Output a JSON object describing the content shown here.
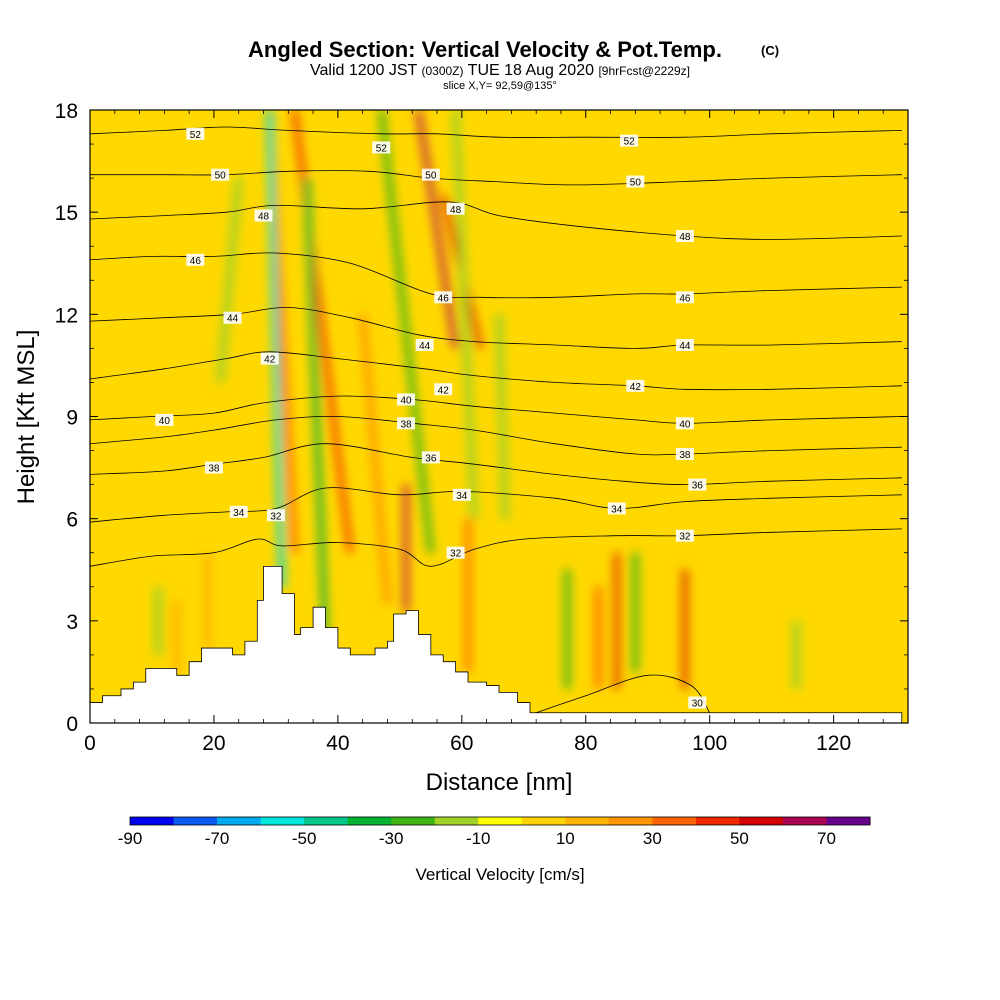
{
  "chart_data": {
    "type": "heatmap",
    "title": "Angled Section: Vertical Velocity & Pot.Temp.",
    "title_mark": "(C)",
    "subtitle": {
      "pre": "Valid 1200 JST",
      "zulu": "(0300Z)",
      "mid": "TUE 18 Aug 2020",
      "fcst": "[9hrFcst@2229z]"
    },
    "slice_text": "slice X,Y= 92,59@135°",
    "xlabel": "Distance [nm]",
    "ylabel": "Height [Kft MSL]",
    "xlim": [
      0,
      132
    ],
    "ylim": [
      0,
      18
    ],
    "x_ticks": [
      0,
      20,
      40,
      60,
      80,
      100,
      120
    ],
    "y_ticks": [
      0,
      3,
      6,
      9,
      12,
      15,
      18
    ],
    "colorbar": {
      "label": "Vertical Velocity [cm/s]",
      "range": [
        -90,
        80
      ],
      "ticks": [
        -90,
        -70,
        -50,
        -30,
        -10,
        10,
        30,
        50,
        70
      ],
      "colors": [
        "#0000f0",
        "#0a5af0",
        "#00aaf0",
        "#00e6dc",
        "#00c88c",
        "#00b432",
        "#3cb414",
        "#a0d228",
        "#ffff00",
        "#ffd200",
        "#ffb400",
        "#ff9600",
        "#ff6400",
        "#f02800",
        "#d20000",
        "#aa0050",
        "#64008c"
      ]
    },
    "terrain_kft": [
      [
        0,
        0.6
      ],
      [
        2,
        0.8
      ],
      [
        5,
        1.0
      ],
      [
        7,
        1.2
      ],
      [
        9,
        1.6
      ],
      [
        12,
        1.6
      ],
      [
        14,
        1.4
      ],
      [
        16,
        1.8
      ],
      [
        18,
        2.2
      ],
      [
        21,
        2.2
      ],
      [
        23,
        2.0
      ],
      [
        25,
        2.4
      ],
      [
        27,
        3.6
      ],
      [
        28,
        4.6
      ],
      [
        30,
        4.6
      ],
      [
        31,
        3.8
      ],
      [
        33,
        2.6
      ],
      [
        34,
        2.8
      ],
      [
        36,
        3.4
      ],
      [
        38,
        2.8
      ],
      [
        40,
        2.2
      ],
      [
        42,
        2.0
      ],
      [
        44,
        2.0
      ],
      [
        46,
        2.2
      ],
      [
        48,
        2.4
      ],
      [
        49,
        3.2
      ],
      [
        51,
        3.3
      ],
      [
        53,
        2.6
      ],
      [
        55,
        2.0
      ],
      [
        57,
        1.8
      ],
      [
        59,
        1.5
      ],
      [
        61,
        1.2
      ],
      [
        64,
        1.1
      ],
      [
        66,
        0.9
      ],
      [
        69,
        0.6
      ],
      [
        71,
        0.3
      ],
      [
        131,
        0.3
      ]
    ],
    "theta_contours": [
      {
        "level": 30,
        "points": [
          [
            72,
            0.3
          ],
          [
            80,
            0.8
          ],
          [
            90,
            1.4
          ],
          [
            97,
            1.1
          ],
          [
            100,
            0.3
          ]
        ]
      },
      {
        "level": 32,
        "points": [
          [
            0,
            4.6
          ],
          [
            10,
            4.9
          ],
          [
            20,
            5.0
          ],
          [
            27,
            5.4
          ],
          [
            31,
            5.2
          ],
          [
            40,
            5.3
          ],
          [
            50,
            5.1
          ],
          [
            55,
            4.6
          ],
          [
            62,
            5.1
          ],
          [
            70,
            5.4
          ],
          [
            85,
            5.5
          ],
          [
            96,
            5.5
          ],
          [
            110,
            5.6
          ],
          [
            131,
            5.7
          ]
        ]
      },
      {
        "level": 34,
        "points": [
          [
            0,
            5.9
          ],
          [
            12,
            6.1
          ],
          [
            22,
            6.2
          ],
          [
            30,
            6.3
          ],
          [
            38,
            6.9
          ],
          [
            50,
            6.7
          ],
          [
            60,
            6.8
          ],
          [
            75,
            6.6
          ],
          [
            85,
            6.3
          ],
          [
            96,
            6.5
          ],
          [
            110,
            6.6
          ],
          [
            131,
            6.7
          ]
        ]
      },
      {
        "level": 36,
        "points": [
          [
            0,
            7.3
          ],
          [
            12,
            7.4
          ],
          [
            20,
            7.6
          ],
          [
            28,
            7.8
          ],
          [
            38,
            8.2
          ],
          [
            52,
            7.8
          ],
          [
            62,
            7.6
          ],
          [
            75,
            7.3
          ],
          [
            86,
            7.1
          ],
          [
            96,
            7.0
          ],
          [
            110,
            7.1
          ],
          [
            131,
            7.2
          ]
        ]
      },
      {
        "level": 38,
        "points": [
          [
            0,
            8.2
          ],
          [
            12,
            8.4
          ],
          [
            20,
            8.6
          ],
          [
            30,
            8.9
          ],
          [
            40,
            9.0
          ],
          [
            52,
            8.8
          ],
          [
            62,
            8.6
          ],
          [
            75,
            8.2
          ],
          [
            88,
            7.9
          ],
          [
            96,
            7.9
          ],
          [
            110,
            8.0
          ],
          [
            131,
            8.1
          ]
        ]
      },
      {
        "level": 40,
        "points": [
          [
            0,
            8.9
          ],
          [
            10,
            9.0
          ],
          [
            20,
            9.1
          ],
          [
            28,
            9.4
          ],
          [
            40,
            9.6
          ],
          [
            52,
            9.5
          ],
          [
            62,
            9.3
          ],
          [
            75,
            9.1
          ],
          [
            88,
            8.9
          ],
          [
            96,
            8.8
          ],
          [
            110,
            8.9
          ],
          [
            131,
            9.0
          ]
        ]
      },
      {
        "level": 42,
        "points": [
          [
            0,
            10.1
          ],
          [
            12,
            10.4
          ],
          [
            22,
            10.7
          ],
          [
            29,
            10.9
          ],
          [
            40,
            10.7
          ],
          [
            54,
            10.4
          ],
          [
            62,
            10.2
          ],
          [
            75,
            10.0
          ],
          [
            88,
            9.9
          ],
          [
            96,
            9.8
          ],
          [
            110,
            9.8
          ],
          [
            131,
            9.9
          ]
        ]
      },
      {
        "level": 44,
        "points": [
          [
            0,
            11.8
          ],
          [
            12,
            11.9
          ],
          [
            23,
            12.0
          ],
          [
            32,
            12.2
          ],
          [
            42,
            11.9
          ],
          [
            53,
            11.4
          ],
          [
            62,
            11.2
          ],
          [
            75,
            11.1
          ],
          [
            88,
            11.0
          ],
          [
            96,
            11.1
          ],
          [
            110,
            11.1
          ],
          [
            131,
            11.2
          ]
        ]
      },
      {
        "level": 46,
        "points": [
          [
            0,
            13.6
          ],
          [
            10,
            13.7
          ],
          [
            20,
            13.7
          ],
          [
            30,
            13.8
          ],
          [
            42,
            13.5
          ],
          [
            55,
            12.6
          ],
          [
            63,
            12.5
          ],
          [
            75,
            12.5
          ],
          [
            88,
            12.6
          ],
          [
            96,
            12.6
          ],
          [
            110,
            12.7
          ],
          [
            131,
            12.8
          ]
        ]
      },
      {
        "level": 48,
        "points": [
          [
            0,
            14.8
          ],
          [
            12,
            14.9
          ],
          [
            22,
            15.0
          ],
          [
            30,
            15.2
          ],
          [
            44,
            15.1
          ],
          [
            58,
            15.3
          ],
          [
            66,
            14.9
          ],
          [
            78,
            14.6
          ],
          [
            96,
            14.3
          ],
          [
            110,
            14.2
          ],
          [
            131,
            14.3
          ]
        ]
      },
      {
        "level": 50,
        "points": [
          [
            0,
            16.1
          ],
          [
            12,
            16.1
          ],
          [
            22,
            16.1
          ],
          [
            32,
            16.2
          ],
          [
            45,
            16.2
          ],
          [
            55,
            16.0
          ],
          [
            65,
            15.9
          ],
          [
            78,
            15.8
          ],
          [
            96,
            15.9
          ],
          [
            110,
            16.0
          ],
          [
            131,
            16.1
          ]
        ]
      },
      {
        "level": 52,
        "points": [
          [
            0,
            17.3
          ],
          [
            12,
            17.4
          ],
          [
            22,
            17.5
          ],
          [
            32,
            17.4
          ],
          [
            47,
            17.3
          ],
          [
            56,
            17.3
          ],
          [
            66,
            17.2
          ],
          [
            80,
            17.2
          ],
          [
            96,
            17.2
          ],
          [
            110,
            17.3
          ],
          [
            131,
            17.4
          ]
        ]
      }
    ],
    "contour_labels": [
      {
        "text": "52",
        "x": 17,
        "y": 17.3
      },
      {
        "text": "52",
        "x": 47,
        "y": 16.9
      },
      {
        "text": "52",
        "x": 87,
        "y": 17.1
      },
      {
        "text": "50",
        "x": 21,
        "y": 16.1
      },
      {
        "text": "50",
        "x": 55,
        "y": 16.1
      },
      {
        "text": "50",
        "x": 88,
        "y": 15.9
      },
      {
        "text": "48",
        "x": 28,
        "y": 14.9
      },
      {
        "text": "48",
        "x": 59,
        "y": 15.1
      },
      {
        "text": "48",
        "x": 96,
        "y": 14.3
      },
      {
        "text": "46",
        "x": 17,
        "y": 13.6
      },
      {
        "text": "46",
        "x": 57,
        "y": 12.5
      },
      {
        "text": "46",
        "x": 96,
        "y": 12.5
      },
      {
        "text": "44",
        "x": 23,
        "y": 11.9
      },
      {
        "text": "44",
        "x": 54,
        "y": 11.1
      },
      {
        "text": "44",
        "x": 96,
        "y": 11.1
      },
      {
        "text": "42",
        "x": 29,
        "y": 10.7
      },
      {
        "text": "42",
        "x": 57,
        "y": 9.8
      },
      {
        "text": "42",
        "x": 88,
        "y": 9.9
      },
      {
        "text": "40",
        "x": 12,
        "y": 8.9
      },
      {
        "text": "40",
        "x": 51,
        "y": 9.5
      },
      {
        "text": "40",
        "x": 96,
        "y": 8.8
      },
      {
        "text": "38",
        "x": 20,
        "y": 7.5
      },
      {
        "text": "38",
        "x": 51,
        "y": 8.8
      },
      {
        "text": "38",
        "x": 96,
        "y": 7.9
      },
      {
        "text": "36",
        "x": 55,
        "y": 7.8
      },
      {
        "text": "36",
        "x": 98,
        "y": 7.0
      },
      {
        "text": "34",
        "x": 24,
        "y": 6.2
      },
      {
        "text": "34",
        "x": 60,
        "y": 6.7
      },
      {
        "text": "34",
        "x": 85,
        "y": 6.3
      },
      {
        "text": "32",
        "x": 30,
        "y": 6.1
      },
      {
        "text": "32",
        "x": 59,
        "y": 5.0
      },
      {
        "text": "32",
        "x": 96,
        "y": 5.5
      },
      {
        "text": "30",
        "x": 98,
        "y": 0.6
      }
    ],
    "updraft_bands": [
      {
        "x0": 33,
        "x1": 29,
        "y0": 5.0,
        "y1": 18,
        "w": 35
      },
      {
        "x0": 42,
        "x1": 33,
        "y0": 5.0,
        "y1": 18,
        "w": 45
      },
      {
        "x0": 59,
        "x1": 53,
        "y0": 11.0,
        "y1": 18,
        "w": 65
      },
      {
        "x0": 63,
        "x1": 57,
        "y0": 11.0,
        "y1": 15.5,
        "w": 50
      },
      {
        "x0": 51,
        "x1": 51,
        "y0": 3.3,
        "y1": 7.0,
        "w": 60
      },
      {
        "x0": 96,
        "x1": 96,
        "y0": 1.0,
        "y1": 4.5,
        "w": 55
      },
      {
        "x0": 85,
        "x1": 85,
        "y0": 1.0,
        "y1": 5.0,
        "w": 50
      },
      {
        "x0": 82,
        "x1": 82,
        "y0": 1.0,
        "y1": 4.0,
        "w": 35
      },
      {
        "x0": 48,
        "x1": 44,
        "y0": 3.5,
        "y1": 12.0,
        "w": 25
      },
      {
        "x0": 61,
        "x1": 61,
        "y0": 1.5,
        "y1": 6.0,
        "w": 30
      },
      {
        "x0": 19,
        "x1": 19,
        "y0": 2.2,
        "y1": 5.0,
        "w": 15
      },
      {
        "x0": 14,
        "x1": 14,
        "y0": 1.5,
        "y1": 3.6,
        "w": 15
      }
    ],
    "downdraft_bands": [
      {
        "x0": 31,
        "x1": 29,
        "y0": 4.0,
        "y1": 18,
        "w": -55
      },
      {
        "x0": 38,
        "x1": 35,
        "y0": 2.5,
        "y1": 16.0,
        "w": -35
      },
      {
        "x0": 55,
        "x1": 47,
        "y0": 5.0,
        "y1": 18,
        "w": -30
      },
      {
        "x0": 62,
        "x1": 59,
        "y0": 6.0,
        "y1": 18,
        "w": -20
      },
      {
        "x0": 88,
        "x1": 88,
        "y0": 1.5,
        "y1": 5.0,
        "w": -30
      },
      {
        "x0": 77,
        "x1": 77,
        "y0": 1.0,
        "y1": 4.5,
        "w": -25
      },
      {
        "x0": 21,
        "x1": 24,
        "y0": 10.0,
        "y1": 16.0,
        "w": -15
      },
      {
        "x0": 11,
        "x1": 11,
        "y0": 2.0,
        "y1": 4.0,
        "w": -15
      },
      {
        "x0": 67,
        "x1": 66,
        "y0": 6.0,
        "y1": 12.0,
        "w": -15
      },
      {
        "x0": 114,
        "x1": 114,
        "y0": 1.0,
        "y1": 3.0,
        "w": -15
      }
    ]
  }
}
